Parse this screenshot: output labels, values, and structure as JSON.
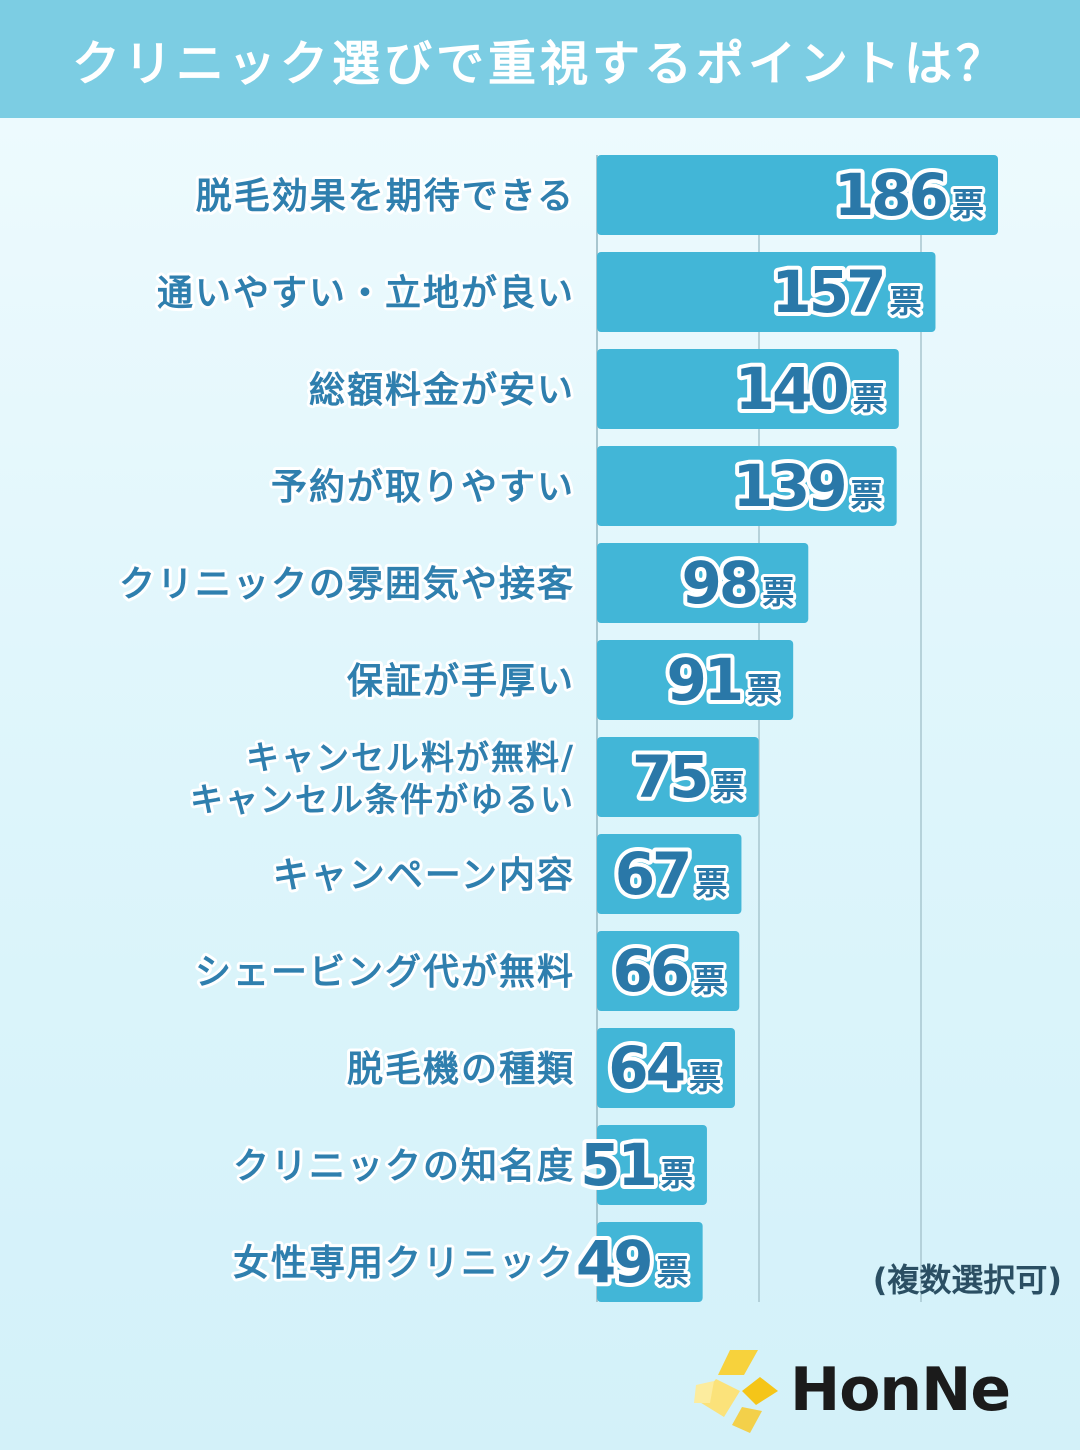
{
  "title": "クリニック選びで重視するポイントは？",
  "note": "(複数選択可)",
  "logo": {
    "text": "HonNe",
    "icon": "honne-logo-icon"
  },
  "colors": {
    "header": "#7ccde3",
    "bar": "#42b6d7",
    "grid": "#a8c6cf",
    "label": "#2f7fae",
    "value": "#2a78a8"
  },
  "chart_data": {
    "type": "bar",
    "orientation": "horizontal",
    "unit": "票",
    "categories": [
      [
        "脱毛効果を期待できる"
      ],
      [
        "通いやすい・立地が良い"
      ],
      [
        "総額料金が安い"
      ],
      [
        "予約が取りやすい"
      ],
      [
        "クリニックの雰囲気や接客"
      ],
      [
        "保証が手厚い"
      ],
      [
        "キャンセル料が無料/",
        "キャンセル条件がゆるい"
      ],
      [
        "キャンペーン内容"
      ],
      [
        "シェービング代が無料"
      ],
      [
        "脱毛機の種類"
      ],
      [
        "クリニックの知名度"
      ],
      [
        "女性専用クリニック"
      ]
    ],
    "values": [
      186,
      157,
      140,
      139,
      98,
      91,
      75,
      67,
      66,
      64,
      51,
      49
    ],
    "xlim": [
      0,
      186
    ],
    "grid": true
  }
}
